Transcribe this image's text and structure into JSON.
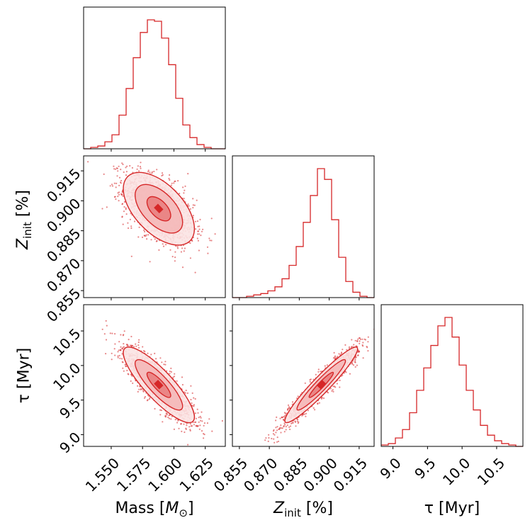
{
  "chart_data": {
    "type": "corner",
    "color": "#d62728",
    "parameters": [
      {
        "name": "mass",
        "label": "Mass [M⊙]",
        "range": [
          1.528,
          1.641
        ],
        "ticks": [
          1.55,
          1.575,
          1.6,
          1.625
        ],
        "tick_labels": [
          "1.550",
          "1.575",
          "1.600",
          "1.625"
        ],
        "mean": 1.588,
        "sd": 0.014
      },
      {
        "name": "zinit",
        "label": "Zinit [%]",
        "range": [
          0.8515,
          0.9225
        ],
        "ticks": [
          0.855,
          0.87,
          0.885,
          0.9,
          0.915
        ],
        "tick_labels": [
          "0.855",
          "0.870",
          "0.885",
          "0.900",
          "0.915"
        ],
        "mean": 0.896,
        "sd": 0.009
      },
      {
        "name": "tau",
        "label": "τ [Myr]",
        "range": [
          8.83,
          10.88
        ],
        "ticks": [
          9.0,
          9.5,
          10.0,
          10.5
        ],
        "tick_labels": [
          "9.0",
          "9.5",
          "10.0",
          "10.5"
        ],
        "mean": 9.72,
        "sd": 0.27
      }
    ],
    "axis_labels": {
      "mass": {
        "main": "Mass [",
        "sym": "M",
        "sub": "⊙",
        "tail": "]"
      },
      "zinit": {
        "main": "Z",
        "sub": "init",
        "tail": "[%]"
      },
      "tau": {
        "main": "τ [Myr]"
      }
    },
    "histograms": [
      {
        "param": "mass",
        "edges": [
          1.528,
          1.641
        ],
        "bins": 20,
        "counts": [
          0,
          1,
          2,
          5,
          10,
          24,
          43,
          65,
          83,
          92,
          91,
          79,
          60,
          36,
          17,
          8,
          3,
          1,
          0,
          0
        ]
      },
      {
        "param": "zinit",
        "edges": [
          0.8515,
          0.9225
        ],
        "bins": 20,
        "counts": [
          0,
          0,
          1,
          2,
          3,
          5,
          8,
          14,
          24,
          38,
          56,
          76,
          96,
          88,
          58,
          30,
          12,
          4,
          1,
          0
        ]
      },
      {
        "param": "tau",
        "edges": [
          8.83,
          10.88
        ],
        "bins": 20,
        "counts": [
          1,
          2,
          6,
          12,
          24,
          40,
          56,
          72,
          86,
          92,
          78,
          58,
          40,
          26,
          15,
          8,
          4,
          2,
          1,
          0
        ]
      }
    ],
    "pairs": [
      {
        "x": "mass",
        "y": "zinit",
        "correlation": -0.55
      },
      {
        "x": "mass",
        "y": "tau",
        "correlation": -0.85
      },
      {
        "x": "zinit",
        "y": "tau",
        "correlation": 0.95
      }
    ],
    "contour_levels": [
      0.5,
      1.0,
      1.5
    ]
  }
}
